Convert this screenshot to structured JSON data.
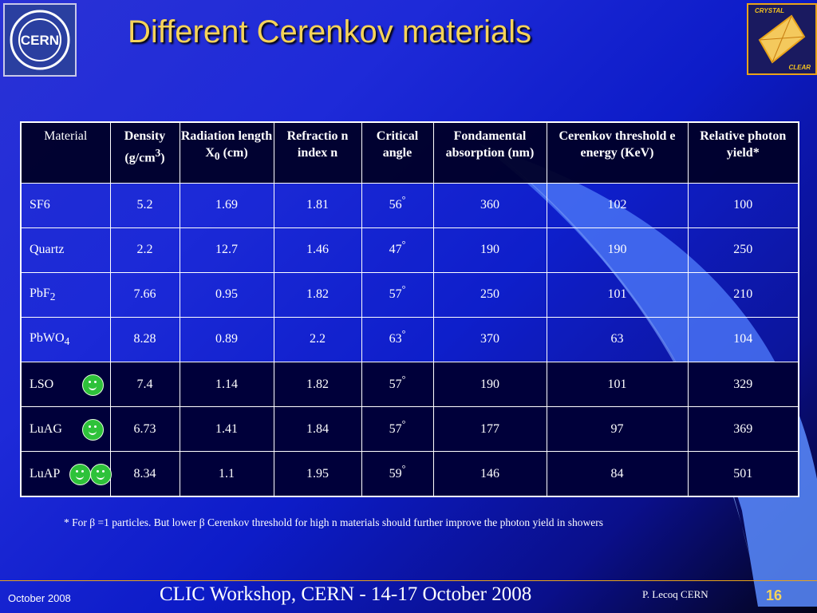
{
  "slide": {
    "title": "Different Cerenkov materials",
    "logo_left_text": "CERN",
    "logo_right_text_top": "CRYSTAL",
    "logo_right_text_bottom": "CLEAR"
  },
  "table": {
    "headers": [
      {
        "text": "Material"
      },
      {
        "text": "Density (g/cm",
        "sup": "3",
        "after": ")"
      },
      {
        "text": "Radiation length X",
        "sub": "0",
        "after": " (cm)"
      },
      {
        "text": "Refractio n index n"
      },
      {
        "text": "Critical angle"
      },
      {
        "text": "Fondamental absorption (nm)"
      },
      {
        "text": "Cerenkov threshold e energy (KeV)"
      },
      {
        "text": "Relative photon yield*"
      }
    ],
    "rows": [
      {
        "material": "SF6",
        "sub": "",
        "density": "5.2",
        "radlen": "1.69",
        "index": "1.81",
        "angle": "56",
        "absorption": "360",
        "threshold": "102",
        "yield": "100",
        "smileys": 0
      },
      {
        "material": "Quartz",
        "sub": "",
        "density": "2.2",
        "radlen": "12.7",
        "index": "1.46",
        "angle": "47",
        "absorption": "190",
        "threshold": "190",
        "yield": "250",
        "smileys": 0
      },
      {
        "material": "PbF",
        "sub": "2",
        "density": "7.66",
        "radlen": "0.95",
        "index": "1.82",
        "angle": "57",
        "absorption": "250",
        "threshold": "101",
        "yield": "210",
        "smileys": 0
      },
      {
        "material": "PbWO",
        "sub": "4",
        "density": "8.28",
        "radlen": "0.89",
        "index": "2.2",
        "angle": "63",
        "absorption": "370",
        "threshold": "63",
        "yield": "104",
        "smileys": 0
      },
      {
        "material": "LSO",
        "sub": "",
        "density": "7.4",
        "radlen": "1.14",
        "index": "1.82",
        "angle": "57",
        "absorption": "190",
        "threshold": "101",
        "yield": "329",
        "smileys": 1
      },
      {
        "material": "LuAG",
        "sub": "",
        "density": "6.73",
        "radlen": "1.41",
        "index": "1.84",
        "angle": "57",
        "absorption": "177",
        "threshold": "97",
        "yield": "369",
        "smileys": 1
      },
      {
        "material": "LuAP",
        "sub": "",
        "density": "8.34",
        "radlen": "1.1",
        "index": "1.95",
        "angle": "59",
        "absorption": "146",
        "threshold": "84",
        "yield": "501",
        "smileys": 2
      }
    ],
    "degree_symbol": "°"
  },
  "footnote": "* For β =1 particles. But lower β Cerenkov threshold for high n materials should further improve the photon yield in showers",
  "footer": {
    "date": "October 2008",
    "event": "CLIC Workshop, CERN - 14-17 October 2008",
    "author": "P. Lecoq  CERN",
    "page": "16"
  },
  "colors": {
    "title": "#f5d35a",
    "accent_line": "#e9a31a",
    "smiley": "#2ec23a"
  }
}
